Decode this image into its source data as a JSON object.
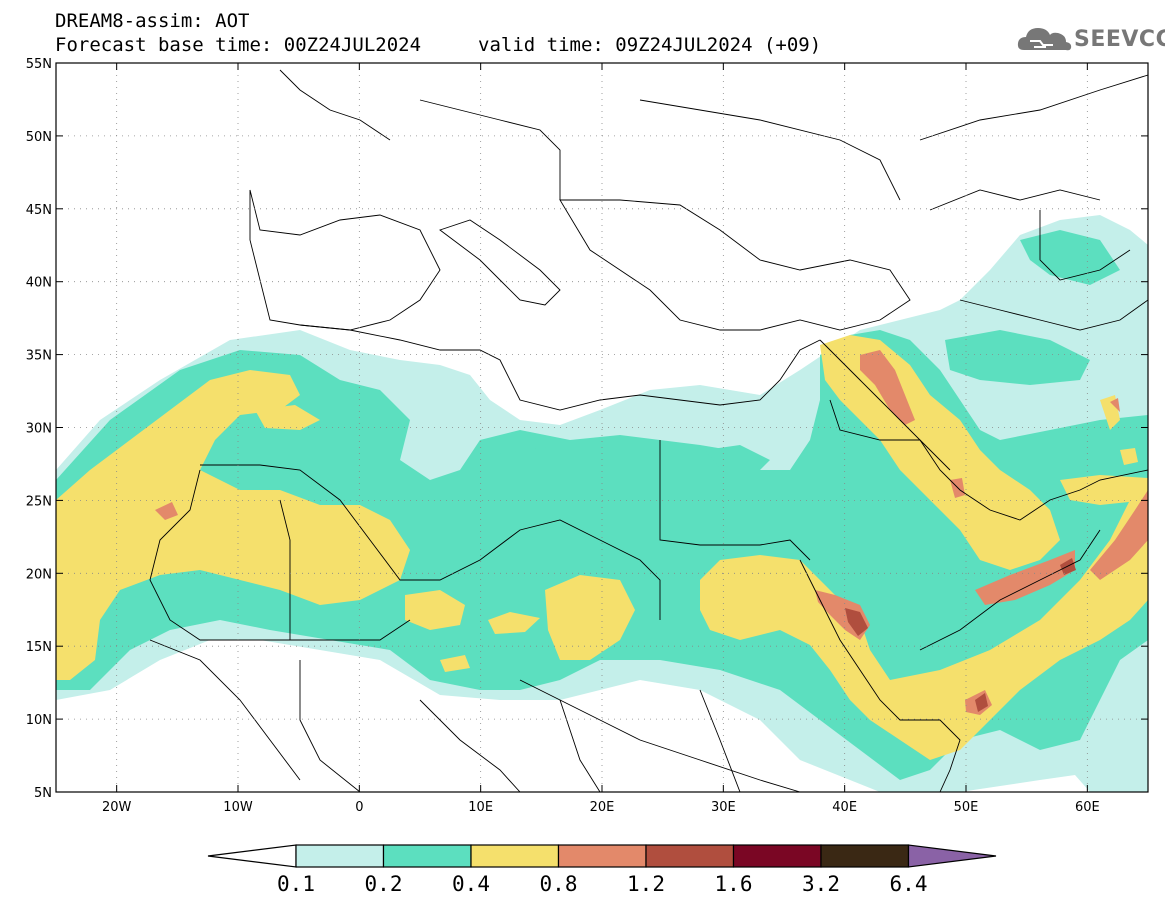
{
  "header": {
    "title_line1": "DREAM8-assim: AOT",
    "title_line2": "Forecast base time: 00Z24JUL2024",
    "valid_time": "valid time: 09Z24JUL2024 (+09)",
    "logo_text": "SEEVCCC"
  },
  "map": {
    "lon_range": [
      -25,
      65
    ],
    "lat_range": [
      5,
      55
    ],
    "lat_labels": [
      "55N",
      "50N",
      "45N",
      "40N",
      "35N",
      "30N",
      "25N",
      "20N",
      "15N",
      "10N",
      "5N"
    ],
    "lat_values": [
      55,
      50,
      45,
      40,
      35,
      30,
      25,
      20,
      15,
      10,
      5
    ],
    "lon_labels": [
      "20W",
      "10W",
      "0",
      "10E",
      "20E",
      "30E",
      "40E",
      "50E",
      "60E"
    ],
    "lon_values": [
      -20,
      -10,
      0,
      10,
      20,
      30,
      40,
      50,
      60
    ],
    "grid": "dotted",
    "colors": {
      "0.1-0.2": "#c4efea",
      "0.2-0.4": "#5cdfbf",
      "0.4-0.8": "#f5e06c",
      "0.8-1.2": "#e3896a",
      "1.2-1.6": "#b04e3e",
      "1.6-3.2": "#7a0624",
      "3.2-6.4": "#3a2814",
      ">6.4": "#8a62a6"
    }
  },
  "colorbar": {
    "labels": [
      "0.1",
      "0.2",
      "0.4",
      "0.8",
      "1.2",
      "1.6",
      "3.2",
      "6.4"
    ],
    "colors": [
      "#c4efea",
      "#5cdfbf",
      "#f5e06c",
      "#e3896a",
      "#b04e3e",
      "#7a0624",
      "#3a2814"
    ],
    "under_color": "#ffffff",
    "over_color": "#8a62a6"
  }
}
